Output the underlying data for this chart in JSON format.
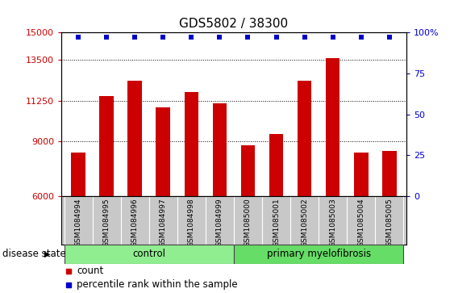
{
  "title": "GDS5802 / 38300",
  "samples": [
    "GSM1084994",
    "GSM1084995",
    "GSM1084996",
    "GSM1084997",
    "GSM1084998",
    "GSM1084999",
    "GSM1085000",
    "GSM1085001",
    "GSM1085002",
    "GSM1085003",
    "GSM1085004",
    "GSM1085005"
  ],
  "counts": [
    8400,
    11500,
    12350,
    10900,
    11700,
    11100,
    8800,
    9400,
    12350,
    13600,
    8400,
    8500
  ],
  "percentile_ranks": [
    97,
    97,
    97,
    97,
    97,
    97,
    97,
    97,
    97,
    97,
    97,
    97
  ],
  "groups": [
    {
      "label": "control",
      "start": 0,
      "end": 6,
      "color": "#90EE90"
    },
    {
      "label": "primary myelofibrosis",
      "start": 6,
      "end": 12,
      "color": "#66DD66"
    }
  ],
  "disease_state_label": "disease state",
  "ylim_left": [
    6000,
    15000
  ],
  "yticks_left": [
    6000,
    9000,
    11250,
    13500,
    15000
  ],
  "ytick_labels_left": [
    "6000",
    "9000",
    "11250",
    "13500",
    "15000"
  ],
  "ylim_right": [
    0,
    100
  ],
  "yticks_right": [
    0,
    25,
    50,
    75,
    100
  ],
  "ytick_labels_right": [
    "0",
    "25",
    "50",
    "75",
    "100%"
  ],
  "bar_color": "#CC0000",
  "dot_color": "#0000CC",
  "bar_width": 0.5,
  "grid_color": "#000000",
  "legend_count_label": "count",
  "legend_percentile_label": "percentile rank within the sample",
  "title_fontsize": 11,
  "tick_fontsize": 8,
  "label_fontsize": 8.5,
  "xtick_gray": "#C8C8C8",
  "group_border_color": "#444444"
}
